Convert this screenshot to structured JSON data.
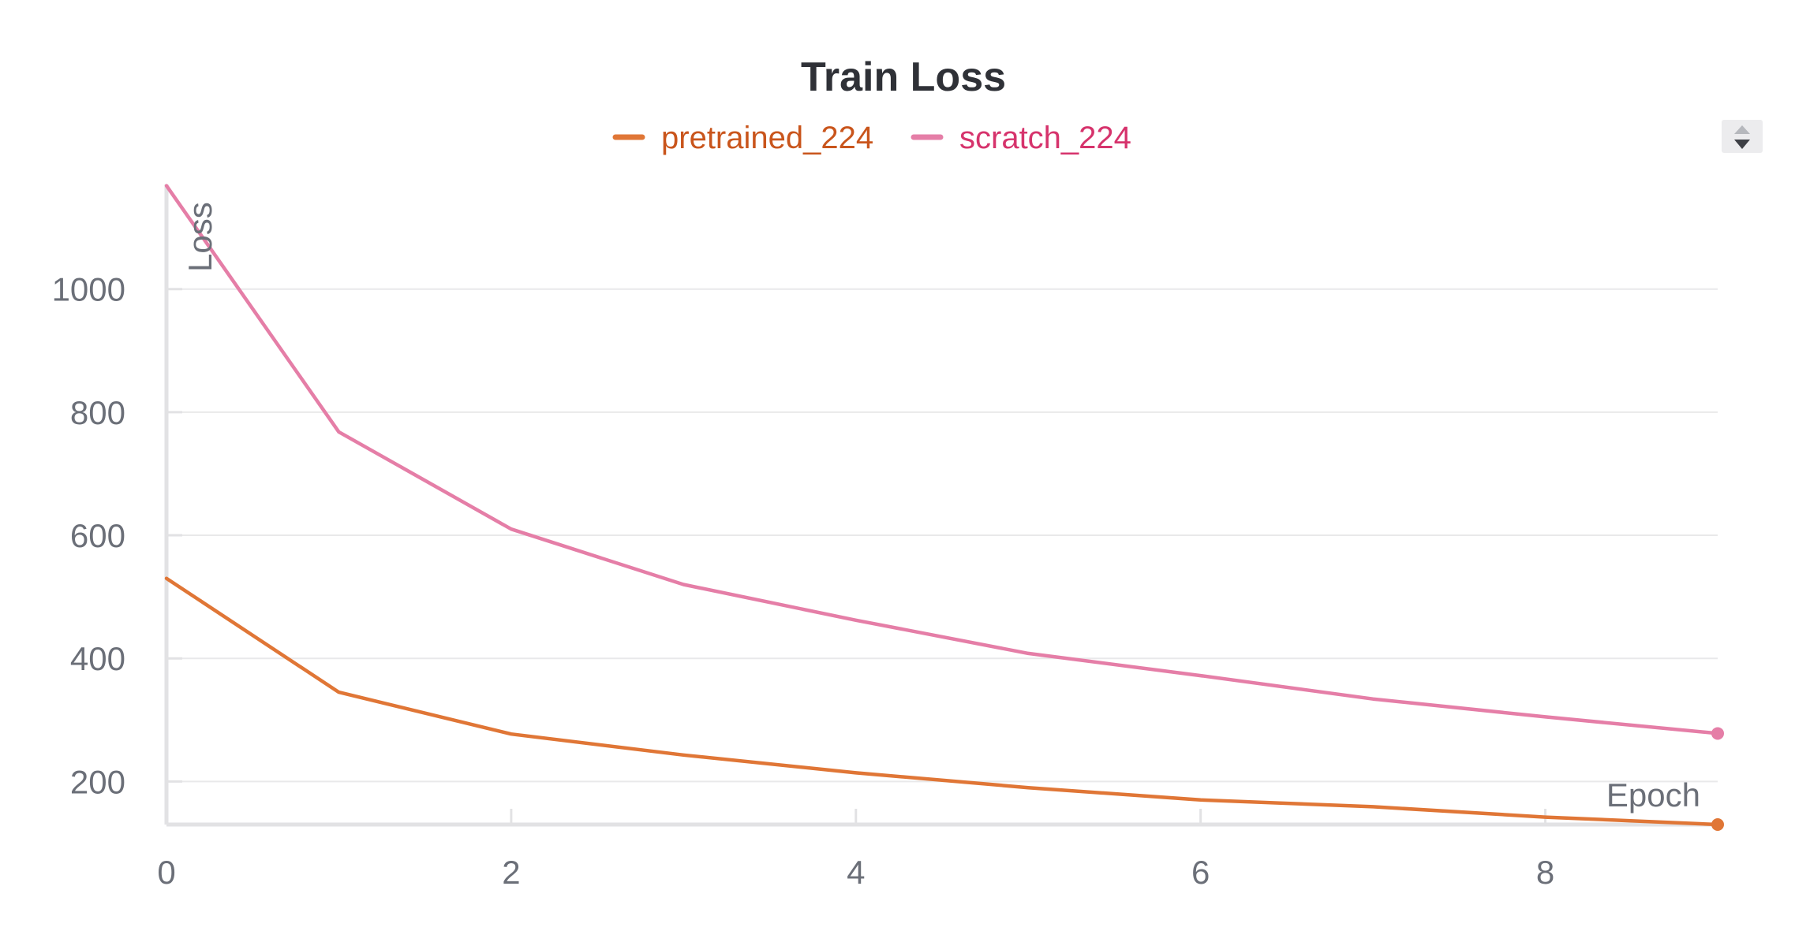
{
  "chart_data": {
    "type": "line",
    "title": "Train Loss",
    "xlabel": "Epoch",
    "ylabel": "Loss",
    "x": [
      0,
      1,
      2,
      3,
      4,
      5,
      6,
      7,
      8,
      9
    ],
    "xlim": [
      0,
      9
    ],
    "ylim": [
      130,
      1170
    ],
    "x_ticks": [
      "0",
      "2",
      "4",
      "6",
      "8"
    ],
    "y_ticks": [
      "200",
      "400",
      "600",
      "800",
      "1000"
    ],
    "grid": true,
    "legend_position": "top-center",
    "series": [
      {
        "name": "pretrained_224",
        "color": "#e07636",
        "text_color": "#c9551c",
        "values": [
          530,
          345,
          277,
          243,
          214,
          190,
          170,
          159,
          142,
          130
        ]
      },
      {
        "name": "scratch_224",
        "color": "#e57ea7",
        "text_color": "#d6336c",
        "values": [
          1168,
          768,
          610,
          520,
          462,
          408,
          372,
          334,
          305,
          278
        ]
      }
    ]
  },
  "controls": {
    "legend_scroll_icon": "scroll-arrows-icon"
  }
}
